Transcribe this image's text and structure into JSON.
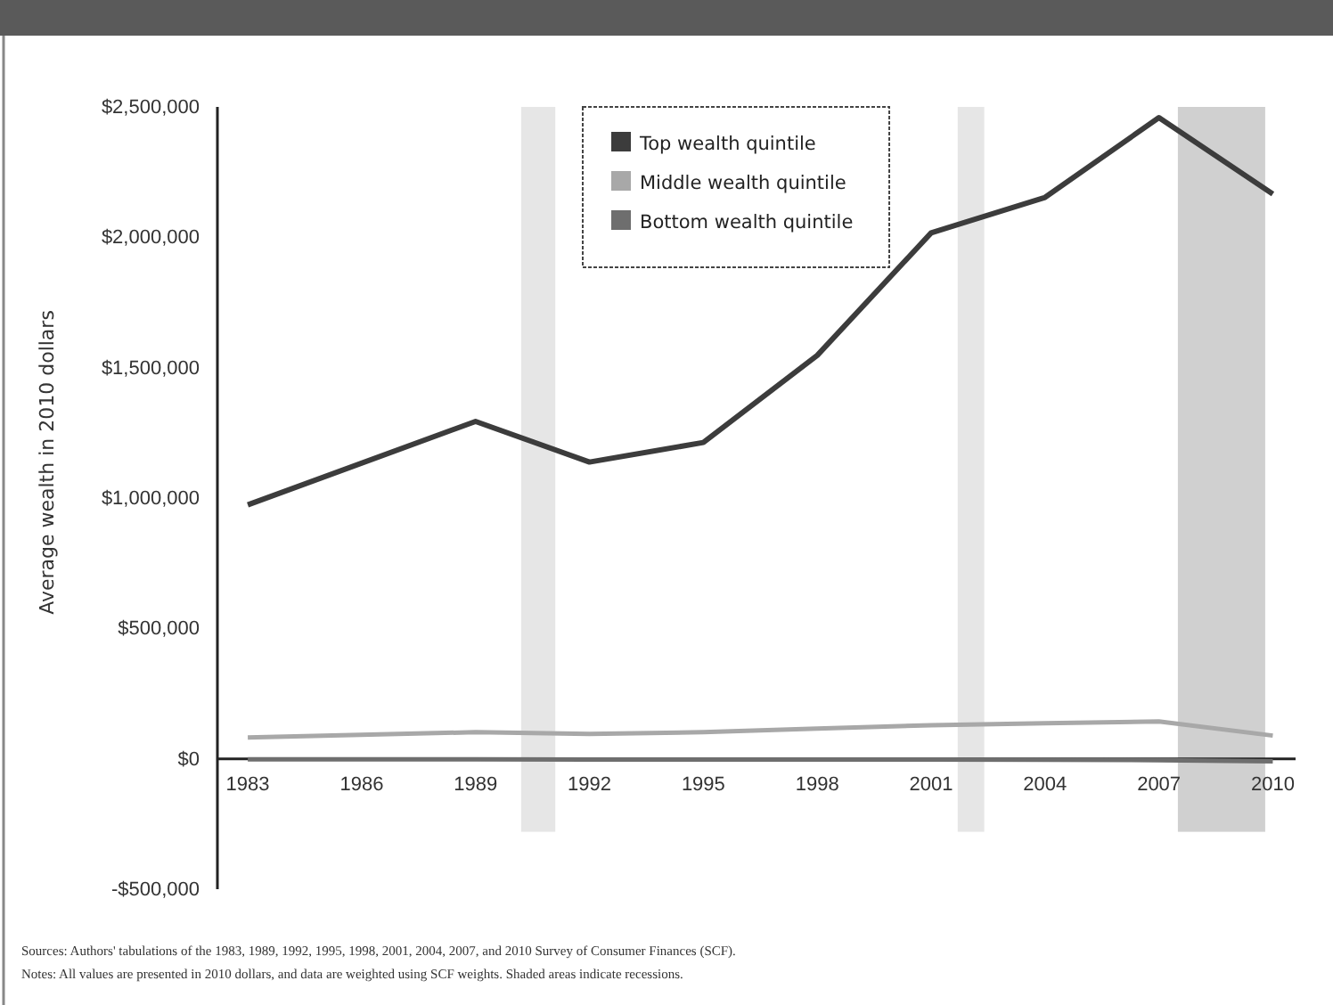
{
  "chart_data": {
    "type": "line",
    "ylabel": "Average wealth in 2010 dollars",
    "x": [
      1983,
      1989,
      1992,
      1995,
      1998,
      2001,
      2004,
      2007,
      2010
    ],
    "xlim": [
      1982.2,
      2010.6
    ],
    "xticks": [
      1983,
      1986,
      1989,
      1992,
      1995,
      1998,
      2001,
      2004,
      2007,
      2010
    ],
    "ylim": [
      -500000,
      2500000
    ],
    "yticks": [
      {
        "value": -500000,
        "label": "-$500,000"
      },
      {
        "value": 0,
        "label": "$0"
      },
      {
        "value": 500000,
        "label": "$500,000"
      },
      {
        "value": 1000000,
        "label": "$1,000,000"
      },
      {
        "value": 1500000,
        "label": "$1,500,000"
      },
      {
        "value": 2000000,
        "label": "$2,000,000"
      },
      {
        "value": 2500000,
        "label": "$2,500,000"
      }
    ],
    "series": [
      {
        "name": "Top wealth quintile",
        "color": "#3c3c3c",
        "values": [
          974000,
          1294000,
          1138000,
          1213000,
          1547000,
          2017000,
          2153000,
          2459000,
          2166000
        ]
      },
      {
        "name": "Middle wealth quintile",
        "color": "#a8a8a8",
        "values": [
          82000,
          102000,
          95000,
          102000,
          116000,
          129000,
          136000,
          143000,
          89000
        ]
      },
      {
        "name": "Bottom wealth quintile",
        "color": "#6e6e6e",
        "values": [
          -2000,
          -2000,
          -3000,
          -3000,
          -3000,
          -3000,
          -4000,
          -5000,
          -10000
        ]
      }
    ],
    "bands": [
      {
        "axis": "x",
        "from": 1990.2,
        "to": 1991.1,
        "color": "#e2e2e2"
      },
      {
        "axis": "x",
        "from": 2001.7,
        "to": 2002.4,
        "color": "#e2e2e2"
      },
      {
        "axis": "x",
        "from": 2007.5,
        "to": 2009.8,
        "color": "#c8c8c8"
      }
    ],
    "legend": "top",
    "grid": false,
    "marker": "none",
    "line_style": "solid",
    "annotations": [
      "Sources: Authors' tabulations of the 1983, 1989, 1992, 1995, 1998, 2001, 2004, 2007, and 2010 Survey of Consumer Finances (SCF).",
      "Notes: All values are presented in 2010 dollars, and data are weighted using SCF weights. Shaded areas indicate recessions."
    ]
  }
}
